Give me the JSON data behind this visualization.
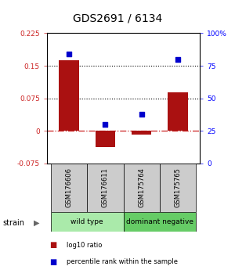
{
  "title": "GDS2691 / 6134",
  "samples": [
    "GSM176606",
    "GSM176611",
    "GSM175764",
    "GSM175765"
  ],
  "log10_ratio": [
    0.162,
    -0.038,
    -0.008,
    0.088
  ],
  "percentile_rank": [
    84,
    30,
    38,
    80
  ],
  "groups": [
    {
      "label": "wild type",
      "span": [
        0,
        2
      ],
      "color": "#aaeaaa"
    },
    {
      "label": "dominant negative",
      "span": [
        2,
        4
      ],
      "color": "#66cc66"
    }
  ],
  "group_label": "strain",
  "bar_color": "#aa1111",
  "dot_color": "#0000cc",
  "ylim_left": [
    -0.075,
    0.225
  ],
  "ylim_right": [
    0,
    100
  ],
  "yticks_left": [
    -0.075,
    0,
    0.075,
    0.15,
    0.225
  ],
  "yticks_right": [
    0,
    25,
    50,
    75,
    100
  ],
  "ytick_labels_left": [
    "-0.075",
    "0",
    "0.075",
    "0.15",
    "0.225"
  ],
  "ytick_labels_right": [
    "0",
    "25",
    "50",
    "75",
    "100%"
  ],
  "hlines_dotted": [
    0.075,
    0.15
  ],
  "bar_color_red": "#aa1111",
  "zero_line_color": "#cc2222",
  "grid_line_color": "#000000",
  "bg_color": "#ffffff",
  "sample_box_color": "#cccccc",
  "legend_items": [
    {
      "label": "log10 ratio",
      "color": "#aa1111"
    },
    {
      "label": "percentile rank within the sample",
      "color": "#0000cc"
    }
  ],
  "bar_width": 0.55
}
